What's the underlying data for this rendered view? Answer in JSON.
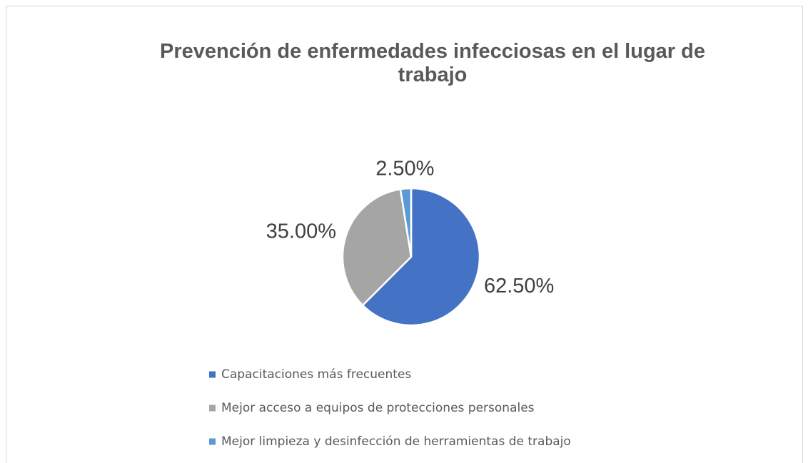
{
  "chart_data": {
    "type": "pie",
    "title": "Prevención de enfermedades infecciosas en el lugar de trabajo",
    "categories": [
      "Capacitaciones más frecuentes",
      "Mejor acceso a equipos de protecciones personales",
      "Mejor limpieza y desinfección de herramientas de trabajo"
    ],
    "values": [
      62.5,
      35,
      2.5
    ],
    "value_labels": [
      "62.50%",
      "35.00%",
      "2.50%"
    ],
    "colors": [
      "#4472c4",
      "#a5a5a5",
      "#5b9bd5"
    ],
    "legend": "bottom"
  }
}
